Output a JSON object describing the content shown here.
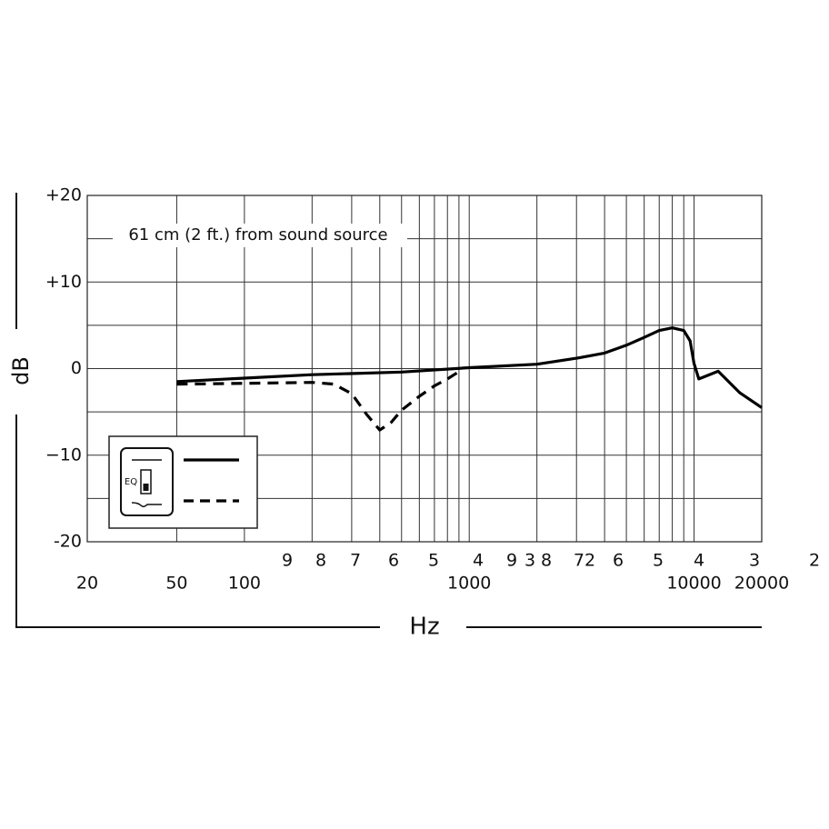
{
  "chart_data": {
    "type": "line",
    "x_label": "Hz",
    "y_label": "dB",
    "annotation": "61 cm (2 ft.) from sound source",
    "legend_icon_label": "EQ",
    "xscale": "log",
    "xlim": [
      20,
      20000
    ],
    "xticks": [
      20,
      50,
      100,
      1000,
      10000,
      20000
    ],
    "x_tick_digits": [
      "9",
      "8",
      "7",
      "6",
      "5",
      "4",
      "9",
      "3",
      "8",
      "72",
      "6",
      "5",
      "4",
      "3",
      "2"
    ],
    "xgrid": [
      50,
      100,
      200,
      300,
      400,
      500,
      600,
      700,
      800,
      900,
      1000,
      2000,
      3000,
      4000,
      5000,
      6000,
      7000,
      8000,
      9000,
      10000
    ],
    "ylim": [
      -20,
      20
    ],
    "yticks": [
      {
        "value": 20,
        "label": "+20"
      },
      {
        "value": 10,
        "label": "+10"
      },
      0,
      {
        "value": -10,
        "label": "−10"
      },
      -20
    ],
    "ygrid": [
      -15,
      -5,
      5,
      15
    ],
    "grid": true,
    "series": [
      {
        "style": "solid",
        "color": "#000000",
        "x": [
          50,
          100,
          200,
          500,
          1000,
          2000,
          3000,
          4000,
          5000,
          6000,
          7000,
          8000,
          9000,
          9600,
          10000,
          10500,
          12800,
          16000,
          20000
        ],
        "values": [
          -1.5,
          -1.1,
          -0.7,
          -0.4,
          0.1,
          0.5,
          1.2,
          1.8,
          2.7,
          3.6,
          4.4,
          4.7,
          4.4,
          3.2,
          0.6,
          -1.2,
          -0.3,
          -2.8,
          -4.5
        ]
      },
      {
        "style": "dashed",
        "color": "#000000",
        "x": [
          50,
          100,
          200,
          250,
          300,
          350,
          400,
          450,
          500,
          600,
          700,
          800,
          880
        ],
        "values": [
          -1.8,
          -1.7,
          -1.6,
          -1.8,
          -2.9,
          -5.3,
          -7.1,
          -6.2,
          -4.8,
          -3.2,
          -2.0,
          -1.2,
          -0.5
        ]
      }
    ]
  }
}
